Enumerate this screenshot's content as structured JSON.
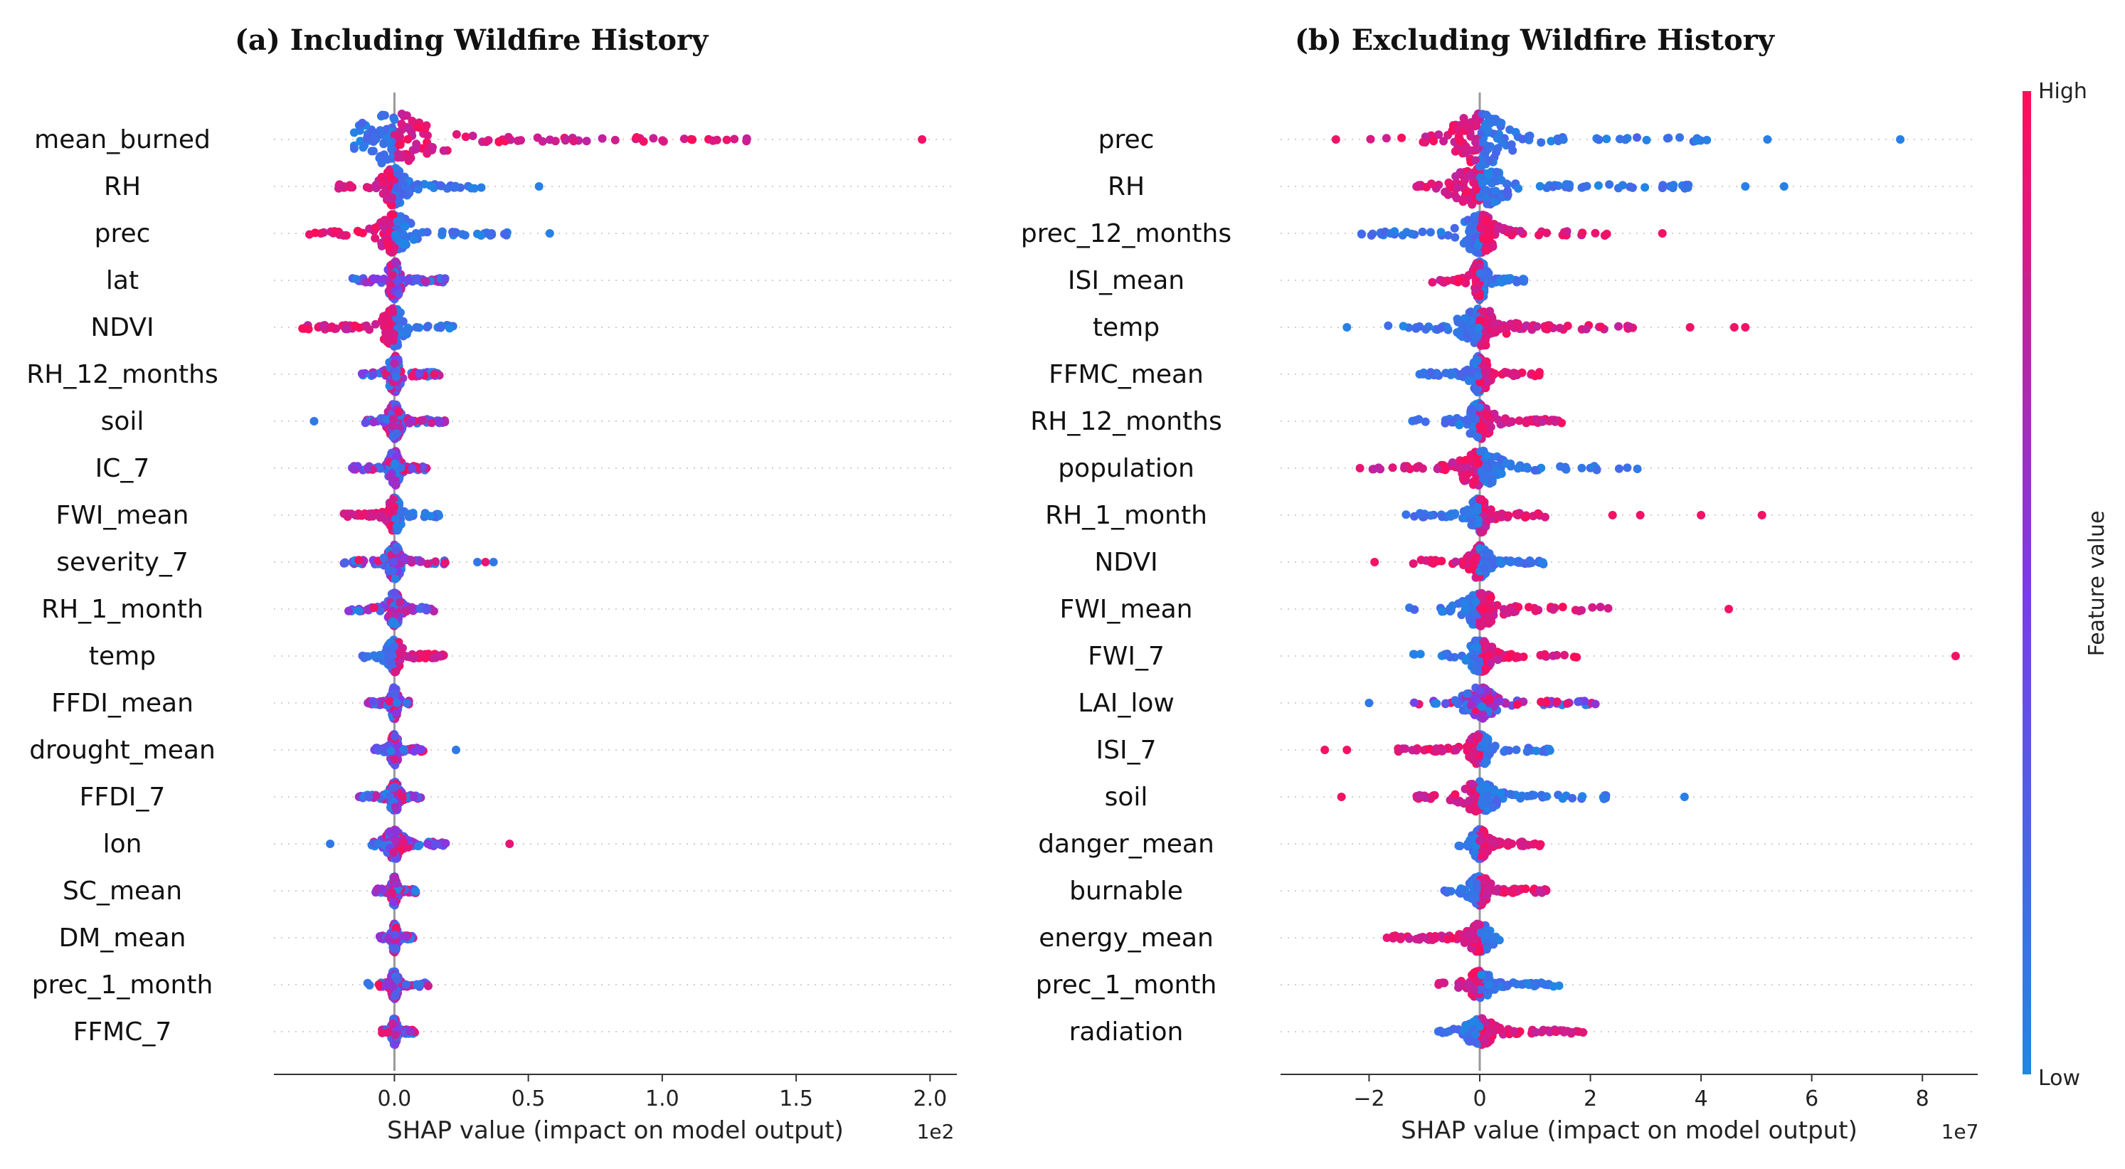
{
  "chart_data": [
    {
      "type": "scatter",
      "subtype": "shap-beeswarm",
      "title": "(a) Including Wildfire History",
      "xlabel": "SHAP value (impact on model output)",
      "x_scale_label": "1e2",
      "xlim": [
        -0.45,
        2.1
      ],
      "xticks": [
        0.0,
        0.5,
        1.0,
        1.5,
        2.0
      ],
      "xtick_labels": [
        "0.0",
        "0.5",
        "1.0",
        "1.5",
        "2.0"
      ],
      "features": [
        {
          "name": "mean_burned",
          "min": -0.15,
          "max": 1.32,
          "high_side": "positive",
          "outliers": [
            1.97
          ]
        },
        {
          "name": "RH",
          "min": -0.22,
          "max": 0.33,
          "high_side": "negative",
          "outliers": [
            0.54
          ]
        },
        {
          "name": "prec",
          "min": -0.32,
          "max": 0.46,
          "high_side": "negative",
          "outliers": [
            0.58
          ]
        },
        {
          "name": "lat",
          "min": -0.17,
          "max": 0.19,
          "high_side": "mixed",
          "outliers": []
        },
        {
          "name": "NDVI",
          "min": -0.35,
          "max": 0.22,
          "high_side": "negative",
          "outliers": []
        },
        {
          "name": "RH_12_months",
          "min": -0.13,
          "max": 0.18,
          "high_side": "mixed",
          "outliers": []
        },
        {
          "name": "soil",
          "min": -0.12,
          "max": 0.19,
          "high_side": "mixed",
          "outliers": [
            -0.3
          ]
        },
        {
          "name": "IC_7",
          "min": -0.16,
          "max": 0.13,
          "high_side": "mixed",
          "outliers": []
        },
        {
          "name": "FWI_mean",
          "min": -0.19,
          "max": 0.17,
          "high_side": "negative",
          "outliers": []
        },
        {
          "name": "severity_7",
          "min": -0.19,
          "max": 0.19,
          "high_side": "mixed",
          "outliers": [
            0.31,
            0.34,
            0.37
          ]
        },
        {
          "name": "RH_1_month",
          "min": -0.18,
          "max": 0.15,
          "high_side": "mixed",
          "outliers": []
        },
        {
          "name": "temp",
          "min": -0.15,
          "max": 0.23,
          "high_side": "positive",
          "outliers": []
        },
        {
          "name": "FFDI_mean",
          "min": -0.1,
          "max": 0.06,
          "high_side": "mixed",
          "outliers": []
        },
        {
          "name": "drought_mean",
          "min": -0.08,
          "max": 0.12,
          "high_side": "mixed",
          "outliers": [
            0.23
          ]
        },
        {
          "name": "FFDI_7",
          "min": -0.14,
          "max": 0.1,
          "high_side": "mixed",
          "outliers": []
        },
        {
          "name": "lon",
          "min": -0.1,
          "max": 0.25,
          "high_side": "mixed",
          "outliers": [
            -0.24,
            0.43
          ]
        },
        {
          "name": "SC_mean",
          "min": -0.07,
          "max": 0.09,
          "high_side": "mixed",
          "outliers": []
        },
        {
          "name": "DM_mean",
          "min": -0.06,
          "max": 0.08,
          "high_side": "mixed",
          "outliers": []
        },
        {
          "name": "prec_1_month",
          "min": -0.11,
          "max": 0.13,
          "high_side": "mixed",
          "outliers": []
        },
        {
          "name": "FFMC_7",
          "min": -0.05,
          "max": 0.08,
          "high_side": "mixed",
          "outliers": []
        }
      ]
    },
    {
      "type": "scatter",
      "subtype": "shap-beeswarm",
      "title": "(b) Excluding Wildfire History",
      "xlabel": "SHAP value (impact on model output)",
      "x_scale_label": "1e7",
      "xlim": [
        -3.6,
        9.0
      ],
      "xticks": [
        -2,
        0,
        2,
        4,
        6,
        8
      ],
      "xtick_labels": [
        "−2",
        "0",
        "2",
        "4",
        "6",
        "8"
      ],
      "features": [
        {
          "name": "prec",
          "min": -2.0,
          "max": 4.2,
          "high_side": "negative",
          "outliers": [
            -2.6,
            5.2,
            7.6
          ]
        },
        {
          "name": "RH",
          "min": -1.5,
          "max": 3.8,
          "high_side": "negative",
          "outliers": [
            4.8,
            5.5
          ]
        },
        {
          "name": "prec_12_months",
          "min": -2.2,
          "max": 2.3,
          "high_side": "positive",
          "outliers": [
            3.3
          ]
        },
        {
          "name": "ISI_mean",
          "min": -0.9,
          "max": 1.0,
          "high_side": "negative",
          "outliers": []
        },
        {
          "name": "temp",
          "min": -1.8,
          "max": 3.0,
          "high_side": "positive",
          "outliers": [
            -2.4,
            3.8,
            4.6,
            4.8
          ]
        },
        {
          "name": "FFMC_mean",
          "min": -1.1,
          "max": 1.2,
          "high_side": "positive",
          "outliers": []
        },
        {
          "name": "RH_12_months",
          "min": -1.3,
          "max": 1.7,
          "high_side": "positive",
          "outliers": []
        },
        {
          "name": "population",
          "min": -2.3,
          "max": 2.9,
          "high_side": "negative",
          "outliers": []
        },
        {
          "name": "RH_1_month",
          "min": -1.4,
          "max": 1.4,
          "high_side": "positive",
          "outliers": [
            2.4,
            2.9,
            4.0,
            5.1
          ]
        },
        {
          "name": "NDVI",
          "min": -1.2,
          "max": 1.3,
          "high_side": "negative",
          "outliers": [
            -1.9
          ]
        },
        {
          "name": "FWI_mean",
          "min": -1.4,
          "max": 2.5,
          "high_side": "positive",
          "outliers": [
            4.5
          ]
        },
        {
          "name": "FWI_7",
          "min": -1.3,
          "max": 1.8,
          "high_side": "positive",
          "outliers": [
            8.6
          ]
        },
        {
          "name": "LAI_low",
          "min": -1.2,
          "max": 2.2,
          "high_side": "mixed",
          "outliers": [
            -2.0
          ]
        },
        {
          "name": "ISI_7",
          "min": -1.6,
          "max": 1.3,
          "high_side": "negative",
          "outliers": [
            -2.8,
            -2.4
          ]
        },
        {
          "name": "soil",
          "min": -1.4,
          "max": 2.3,
          "high_side": "negative",
          "outliers": [
            -2.5,
            3.7
          ]
        },
        {
          "name": "danger_mean",
          "min": -0.4,
          "max": 1.1,
          "high_side": "positive",
          "outliers": []
        },
        {
          "name": "burnable",
          "min": -0.8,
          "max": 1.5,
          "high_side": "positive",
          "outliers": []
        },
        {
          "name": "energy_mean",
          "min": -1.7,
          "max": 0.4,
          "high_side": "negative",
          "outliers": []
        },
        {
          "name": "prec_1_month",
          "min": -0.8,
          "max": 1.6,
          "high_side": "negative",
          "outliers": []
        },
        {
          "name": "radiation",
          "min": -0.8,
          "max": 1.9,
          "high_side": "positive",
          "outliers": []
        }
      ]
    }
  ],
  "colorbar": {
    "label": "Feature value",
    "high_label": "High",
    "low_label": "Low",
    "low_color": "#1e88e5",
    "mid_color": "#7c3aed",
    "high_color": "#ff0d57"
  }
}
